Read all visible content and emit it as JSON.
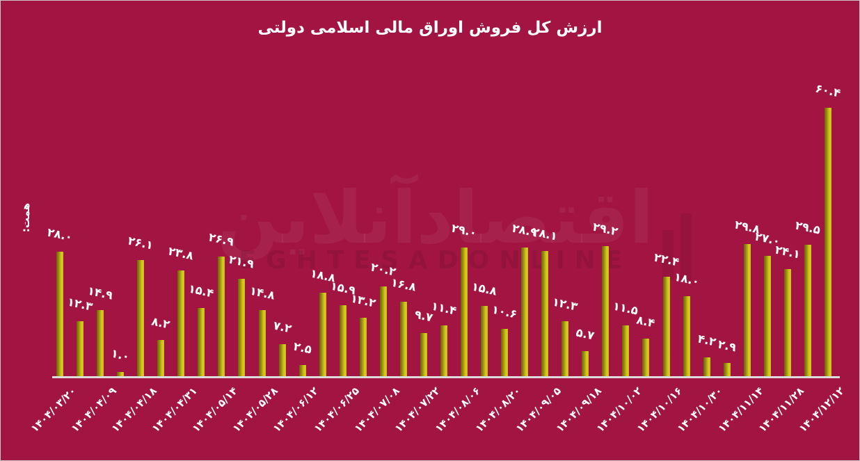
{
  "title": "ارزش کل فروش اوراق مالی اسلامی دولتی",
  "y_axis_unit_label": "همت:",
  "watermark": {
    "persian": "اقتصادآنلاین",
    "latin": "EGHTESADONLINE"
  },
  "colors": {
    "background": "#a21543",
    "bar_dark": "#6a6408",
    "bar_light": "#d9cc1e",
    "text": "#ffffff",
    "axis_line": "#dcdcdc"
  },
  "chart_data": {
    "type": "bar",
    "title": "ارزش کل فروش اوراق مالی اسلامی دولتی",
    "ylabel": "همت:",
    "unit": "همت (هزار میلیارد تومان)",
    "grid": false,
    "legend": false,
    "ylim": [
      0,
      62
    ],
    "values": [
      28.0,
      12.3,
      14.9,
      1.0,
      26.1,
      8.2,
      23.8,
      15.4,
      26.9,
      21.9,
      14.8,
      7.2,
      2.5,
      18.8,
      15.9,
      13.2,
      20.2,
      16.8,
      9.7,
      11.4,
      29.0,
      15.8,
      10.6,
      28.9,
      28.1,
      12.3,
      5.7,
      29.2,
      11.5,
      8.4,
      22.4,
      18.0,
      4.2,
      2.9,
      29.8,
      27.0,
      24.1,
      29.5,
      60.4
    ],
    "value_labels": [
      "۲۸.۰",
      "۱۲.۳",
      "۱۴.۹",
      "۱.۰",
      "۲۶.۱",
      "۸.۲",
      "۲۳.۸",
      "۱۵.۴",
      "۲۶.۹",
      "۲۱.۹",
      "۱۴.۸",
      "۷.۲",
      "۲.۵",
      "۱۸.۸",
      "۱۵.۹",
      "۱۳.۲",
      "۲۰.۲",
      "۱۶.۸",
      "۹.۷",
      "۱۱.۴",
      "۲۹.۰",
      "۱۵.۸",
      "۱۰.۶",
      "۲۸.۹",
      "۲۸.۱",
      "۱۲.۳",
      "۵.۷",
      "۲۹.۲",
      "۱۱.۵",
      "۸.۴",
      "۲۲.۴",
      "۱۸.۰",
      "۴.۲",
      "۲.۹",
      "۲۹.۸",
      "۲۷.۰",
      "۲۴.۱",
      "۲۹.۵",
      "۶۰.۴"
    ],
    "tick_labels": [
      "۱۴۰۴/۰۳/۲۰",
      "۱۴۰۴/۰۴/۰۹",
      "۱۴۰۴/۰۴/۱۸",
      "۱۴۰۴/۰۴/۳۱",
      "۱۴۰۴/۰۵/۱۴",
      "۱۴۰۴/۰۵/۲۸",
      "۱۴۰۴/۰۶/۱۲",
      "۱۴۰۴/۰۶/۲۵",
      "۱۴۰۴/۰۷/۰۸",
      "۱۴۰۴/۰۷/۲۲",
      "۱۴۰۴/۰۸/۰۶",
      "۱۴۰۴/۰۸/۲۰",
      "۱۴۰۴/۰۹/۰۵",
      "۱۴۰۴/۰۹/۱۸",
      "۱۴۰۴/۱۰/۰۲",
      "۱۴۰۴/۱۰/۱۶",
      "۱۴۰۴/۱۰/۳۰",
      "۱۴۰۴/۱۱/۱۴",
      "۱۴۰۴/۱۱/۲۸",
      "۱۴۰۴/۱۲/۱۲"
    ],
    "tick_every": 2
  }
}
